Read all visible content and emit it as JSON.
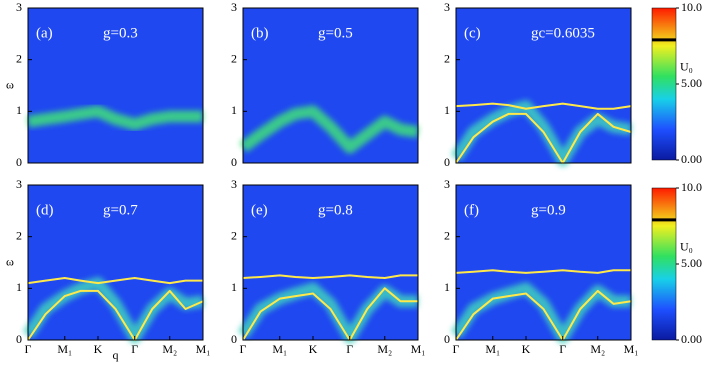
{
  "chart_data": [
    {
      "type": "line",
      "panel_label": "(a)",
      "title": "g=0.3",
      "ylabel": "ω",
      "xlim": [
        0,
        1
      ],
      "ylim": [
        0,
        3
      ],
      "yticks": [
        0,
        1,
        2,
        3
      ],
      "x": [
        0,
        0.1,
        0.21,
        0.3,
        0.4,
        0.5,
        0.61,
        0.71,
        0.81,
        0.9,
        1
      ],
      "series": [
        {
          "color": "#3fe07a",
          "values": [
            0.8,
            0.85,
            0.9,
            0.95,
            1.0,
            0.85,
            0.75,
            0.85,
            0.9,
            0.9,
            0.9
          ]
        }
      ]
    },
    {
      "type": "line",
      "panel_label": "(b)",
      "title": "g=0.5",
      "xlim": [
        0,
        1
      ],
      "ylim": [
        0,
        3
      ],
      "yticks": [
        0,
        1,
        2,
        3
      ],
      "x": [
        0,
        0.1,
        0.21,
        0.3,
        0.4,
        0.5,
        0.61,
        0.71,
        0.81,
        0.9,
        1
      ],
      "series": [
        {
          "color": "#3fe07a",
          "values": [
            0.3,
            0.55,
            0.8,
            0.95,
            1.0,
            0.7,
            0.3,
            0.55,
            0.8,
            0.65,
            0.6
          ]
        }
      ]
    },
    {
      "type": "line",
      "panel_label": "(c)",
      "title": "gc=0.6035",
      "xlim": [
        0,
        1
      ],
      "ylim": [
        0,
        3
      ],
      "yticks": [
        0,
        1,
        2,
        3
      ],
      "x": [
        0,
        0.1,
        0.21,
        0.3,
        0.4,
        0.5,
        0.61,
        0.71,
        0.81,
        0.9,
        1
      ],
      "series": [
        {
          "color": "#3fd0c0",
          "values": [
            0.1,
            0.6,
            0.85,
            1.0,
            1.1,
            0.7,
            0.05,
            0.6,
            0.85,
            0.7,
            0.65
          ]
        },
        {
          "color": "#ffe94a",
          "values": [
            1.1,
            1.12,
            1.15,
            1.12,
            1.05,
            1.1,
            1.15,
            1.1,
            1.05,
            1.05,
            1.1
          ]
        },
        {
          "color": "#ffe94a",
          "values": [
            0,
            0.5,
            0.8,
            0.95,
            0.95,
            0.6,
            0,
            0.6,
            0.95,
            0.7,
            0.6
          ]
        }
      ]
    },
    {
      "type": "line",
      "panel_label": "(d)",
      "title": "g=0.7",
      "ylabel": "ω",
      "xlabel": "q",
      "xlim": [
        0,
        1
      ],
      "ylim": [
        0,
        3
      ],
      "yticks": [
        0,
        1,
        2,
        3
      ],
      "xticks": [
        {
          "value": 0,
          "label": "Γ"
        },
        {
          "value": 0.21,
          "label": "M₁"
        },
        {
          "value": 0.4,
          "label": "K"
        },
        {
          "value": 0.61,
          "label": "Γ"
        },
        {
          "value": 0.81,
          "label": "M₂"
        },
        {
          "value": 1,
          "label": "M₁"
        }
      ],
      "x": [
        0,
        0.1,
        0.21,
        0.3,
        0.4,
        0.5,
        0.61,
        0.71,
        0.81,
        0.9,
        1
      ],
      "series": [
        {
          "color": "#3fd0c0",
          "values": [
            0.1,
            0.6,
            0.85,
            1.0,
            1.1,
            0.7,
            0.05,
            0.6,
            0.9,
            0.7,
            0.75
          ]
        },
        {
          "color": "#ffe94a",
          "values": [
            1.1,
            1.15,
            1.2,
            1.15,
            1.1,
            1.15,
            1.2,
            1.15,
            1.1,
            1.15,
            1.15
          ]
        },
        {
          "color": "#ffe94a",
          "values": [
            0,
            0.5,
            0.85,
            0.95,
            0.95,
            0.6,
            0,
            0.6,
            0.95,
            0.6,
            0.75
          ]
        }
      ]
    },
    {
      "type": "line",
      "panel_label": "(e)",
      "title": "g=0.8",
      "xlim": [
        0,
        1
      ],
      "ylim": [
        0,
        3
      ],
      "yticks": [
        0,
        1,
        2,
        3
      ],
      "xticks": [
        {
          "value": 0,
          "label": "Γ"
        },
        {
          "value": 0.21,
          "label": "M₁"
        },
        {
          "value": 0.4,
          "label": "K"
        },
        {
          "value": 0.61,
          "label": "Γ"
        },
        {
          "value": 0.81,
          "label": "M₂"
        },
        {
          "value": 1,
          "label": "M₁"
        }
      ],
      "x": [
        0,
        0.1,
        0.21,
        0.3,
        0.4,
        0.5,
        0.61,
        0.71,
        0.81,
        0.9,
        1
      ],
      "series": [
        {
          "color": "#3fd0c0",
          "values": [
            0.1,
            0.6,
            0.8,
            0.9,
            1.0,
            0.7,
            0.05,
            0.6,
            0.95,
            0.75,
            0.75
          ]
        },
        {
          "color": "#ffe94a",
          "values": [
            1.2,
            1.22,
            1.25,
            1.22,
            1.2,
            1.22,
            1.25,
            1.22,
            1.2,
            1.25,
            1.25
          ]
        },
        {
          "color": "#ffe94a",
          "values": [
            0,
            0.55,
            0.8,
            0.85,
            0.9,
            0.6,
            0,
            0.6,
            1.0,
            0.75,
            0.75
          ]
        }
      ]
    },
    {
      "type": "line",
      "panel_label": "(f)",
      "title": "g=0.9",
      "xlim": [
        0,
        1
      ],
      "ylim": [
        0,
        3
      ],
      "yticks": [
        0,
        1,
        2,
        3
      ],
      "xticks": [
        {
          "value": 0,
          "label": "Γ"
        },
        {
          "value": 0.21,
          "label": "M₁"
        },
        {
          "value": 0.4,
          "label": "K"
        },
        {
          "value": 0.61,
          "label": "Γ"
        },
        {
          "value": 0.81,
          "label": "M₂"
        },
        {
          "value": 1,
          "label": "M₁"
        }
      ],
      "x": [
        0,
        0.1,
        0.21,
        0.3,
        0.4,
        0.5,
        0.61,
        0.71,
        0.81,
        0.9,
        1
      ],
      "series": [
        {
          "color": "#3fd0c0",
          "values": [
            0.1,
            0.6,
            0.8,
            0.9,
            1.0,
            0.7,
            0.05,
            0.6,
            0.95,
            0.75,
            0.75
          ]
        },
        {
          "color": "#ffe94a",
          "values": [
            1.3,
            1.32,
            1.35,
            1.32,
            1.3,
            1.32,
            1.35,
            1.32,
            1.3,
            1.35,
            1.35
          ]
        },
        {
          "color": "#ffe94a",
          "values": [
            0,
            0.5,
            0.8,
            0.85,
            0.9,
            0.6,
            0,
            0.6,
            0.95,
            0.7,
            0.75
          ]
        }
      ]
    },
    {
      "type": "colorbar",
      "ylim": [
        0,
        10
      ],
      "yticks": [
        {
          "value": 0,
          "label": "0.00"
        },
        {
          "value": 5,
          "label": "5.00"
        },
        {
          "value": 10,
          "label": "10.0"
        }
      ],
      "marker_value": 7.9,
      "marker_label": "U₀"
    },
    {
      "type": "colorbar",
      "ylim": [
        0,
        10
      ],
      "yticks": [
        {
          "value": 0,
          "label": "0.00"
        },
        {
          "value": 5,
          "label": "5.00"
        },
        {
          "value": 10,
          "label": "10.0"
        }
      ],
      "marker_value": 7.9,
      "marker_label": "U₀"
    }
  ]
}
